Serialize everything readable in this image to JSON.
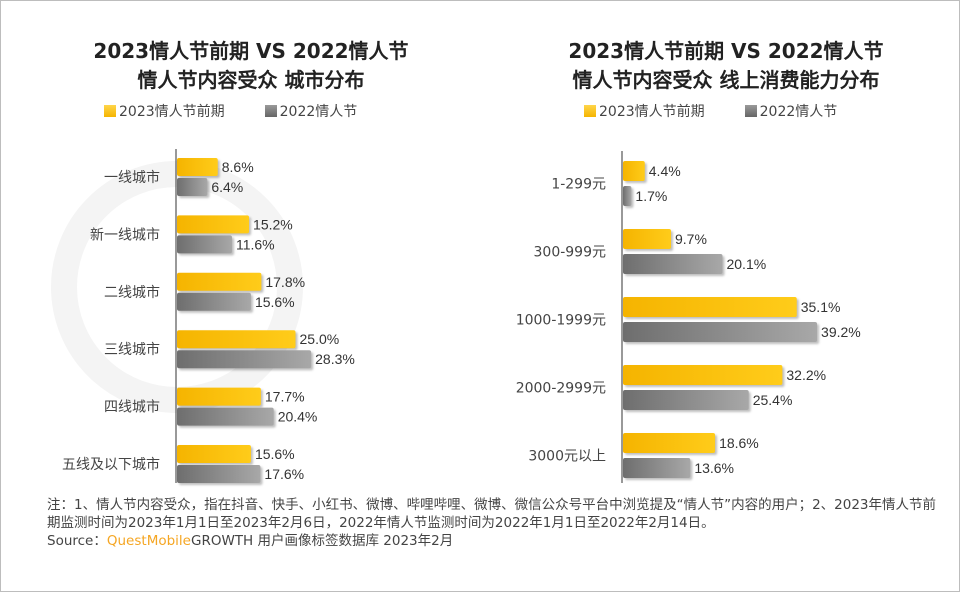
{
  "watermark": "QUEST MOBILE",
  "colors": {
    "current": "#FFC000",
    "previous": "#7F7F7F"
  },
  "chart_data": [
    {
      "type": "bar",
      "orientation": "horizontal",
      "title": "2023情人节前期 VS 2022情人节\n情人节内容受众 城市分布",
      "title_lines": [
        "2023情人节前期 VS 2022情人节",
        "情人节内容受众 城市分布"
      ],
      "categories": [
        "一线城市",
        "新一线城市",
        "二线城市",
        "三线城市",
        "四线城市",
        "五线及以下城市"
      ],
      "series": [
        {
          "name": "2023情人节前期",
          "values": [
            8.6,
            15.2,
            17.8,
            25.0,
            17.7,
            15.6
          ],
          "labels": [
            "8.6%",
            "15.2%",
            "17.8%",
            "25.0%",
            "17.7%",
            "15.6%"
          ]
        },
        {
          "name": "2022情人节",
          "values": [
            6.4,
            11.6,
            15.6,
            28.3,
            20.4,
            17.6
          ],
          "labels": [
            "6.4%",
            "11.6%",
            "15.6%",
            "28.3%",
            "20.4%",
            "17.6%"
          ]
        }
      ],
      "legend": "top",
      "grid": false
    },
    {
      "type": "bar",
      "orientation": "horizontal",
      "title_lines": [
        "2023情人节前期 VS 2022情人节",
        "情人节内容受众 线上消费能力分布"
      ],
      "categories": [
        "1-299元",
        "300-999元",
        "1000-1999元",
        "2000-2999元",
        "3000元以上"
      ],
      "series": [
        {
          "name": "2023情人节前期",
          "values": [
            4.4,
            9.7,
            35.1,
            32.2,
            18.6
          ],
          "labels": [
            "4.4%",
            "9.7%",
            "35.1%",
            "32.2%",
            "18.6%"
          ]
        },
        {
          "name": "2022情人节",
          "values": [
            1.7,
            20.1,
            39.2,
            25.4,
            13.6
          ],
          "labels": [
            "1.7%",
            "20.1%",
            "39.2%",
            "25.4%",
            "13.6%"
          ]
        }
      ],
      "legend": "top",
      "grid": false
    }
  ],
  "note": {
    "line1": "注：1、情人节内容受众，指在抖音、快手、小红书、微博、哔哩哔哩、微博、微信公众号平台中浏览提及“情人节”内容的用户；2、2023年情人节前期监测时间为2023年1月1日至2023年2月6日，2022年情人节监测时间为2022年1月1日至2022年2月14日。",
    "source_prefix": "Source：",
    "source_brand": "QuestMobile",
    "source_rest": "GROWTH 用户画像标签数据库 2023年2月"
  }
}
